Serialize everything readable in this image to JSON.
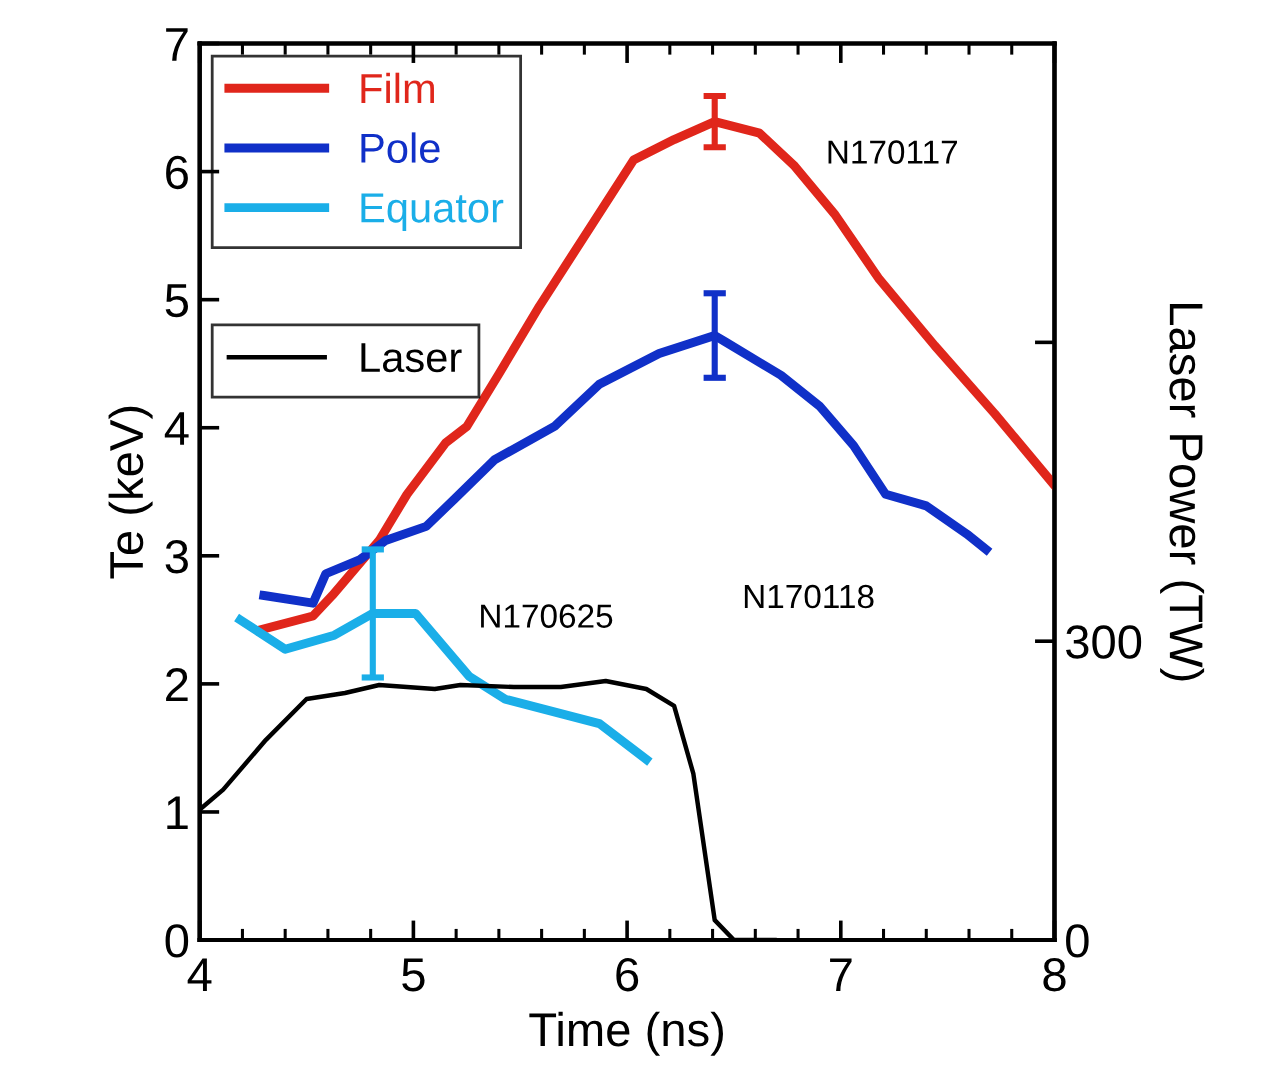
{
  "chart_data": {
    "type": "line",
    "xlabel": "Time (ns)",
    "ylabel": "Te (keV)",
    "y2label": "Laser Power (TW)",
    "xlim": [
      4,
      8
    ],
    "xticks": [
      4,
      {
        "value": 4.2,
        "label": null
      },
      {
        "value": 4.4,
        "label": null
      },
      {
        "value": 4.6,
        "label": null
      },
      {
        "value": 4.8,
        "label": null
      },
      5,
      {
        "value": 5.2,
        "label": null
      },
      {
        "value": 5.4,
        "label": null
      },
      {
        "value": 5.6,
        "label": null
      },
      {
        "value": 5.8,
        "label": null
      },
      6,
      {
        "value": 6.2,
        "label": null
      },
      {
        "value": 6.4,
        "label": null
      },
      {
        "value": 6.6,
        "label": null
      },
      {
        "value": 6.8,
        "label": null
      },
      7,
      {
        "value": 7.2,
        "label": null
      },
      {
        "value": 7.4,
        "label": null
      },
      {
        "value": 7.6,
        "label": null
      },
      {
        "value": 7.8,
        "label": null
      },
      8
    ],
    "ylim": [
      0,
      7
    ],
    "yticks": [
      0,
      1,
      2,
      3,
      4,
      5,
      6,
      7
    ],
    "y2lim": [
      0,
      900
    ],
    "y2ticks": [
      0,
      300,
      {
        "value": 600,
        "label": null
      }
    ],
    "grid": false,
    "legend": "top left",
    "marker": "none",
    "line_style": "solid",
    "series": [
      {
        "name": "Film",
        "color": "#e0261b",
        "x": [
          4.28,
          4.53,
          4.62,
          4.84,
          4.97,
          5.15,
          5.25,
          5.4,
          5.59,
          5.81,
          6.03,
          6.22,
          6.41,
          6.62,
          6.78,
          6.97,
          7.18,
          7.44,
          7.72,
          8.0
        ],
        "values": [
          2.42,
          2.53,
          2.69,
          3.12,
          3.48,
          3.88,
          4.01,
          4.42,
          4.95,
          5.52,
          6.09,
          6.25,
          6.39,
          6.3,
          6.05,
          5.67,
          5.16,
          4.64,
          4.11,
          3.55
        ],
        "errors": [
          null,
          null,
          null,
          null,
          null,
          null,
          null,
          null,
          null,
          null,
          null,
          null,
          0.2,
          null,
          null,
          null,
          null,
          null,
          null,
          null
        ]
      },
      {
        "name": "Pole",
        "color": "#1030c8",
        "x": [
          4.3,
          4.53,
          4.59,
          4.75,
          4.87,
          5.06,
          5.19,
          5.38,
          5.66,
          5.87,
          6.15,
          6.41,
          6.46,
          6.72,
          6.9,
          7.06,
          7.21,
          7.4,
          7.59,
          7.68
        ],
        "values": [
          2.69,
          2.63,
          2.86,
          2.97,
          3.12,
          3.23,
          3.44,
          3.75,
          4.01,
          4.34,
          4.58,
          4.72,
          4.67,
          4.41,
          4.17,
          3.86,
          3.48,
          3.39,
          3.17,
          3.05
        ],
        "errors": [
          null,
          null,
          null,
          null,
          null,
          null,
          null,
          null,
          null,
          null,
          null,
          0.33,
          null,
          null,
          null,
          null,
          null,
          null,
          null,
          null
        ]
      },
      {
        "name": "Equator",
        "color": "#1aaee8",
        "x": [
          4.19,
          4.4,
          4.63,
          4.81,
          5.01,
          5.26,
          5.43,
          5.87,
          6.09
        ],
        "values": [
          2.5,
          2.27,
          2.38,
          2.55,
          2.55,
          2.06,
          1.88,
          1.69,
          1.41
        ],
        "errors": [
          null,
          null,
          null,
          0.5,
          null,
          null,
          null,
          null,
          null
        ]
      },
      {
        "name": "Laser",
        "color": "#000000",
        "axis": "y2",
        "x": [
          4.0,
          4.11,
          4.31,
          4.5,
          4.68,
          4.84,
          5.1,
          5.22,
          5.47,
          5.69,
          5.9,
          6.09,
          6.22,
          6.31,
          6.41,
          6.5,
          6.69
        ],
        "values": [
          131,
          151,
          201,
          242,
          248,
          256,
          252,
          256,
          254,
          254,
          260,
          252,
          235,
          167,
          20,
          0,
          0
        ]
      }
    ],
    "annotations": [
      "N170117",
      "N170118",
      "N170625"
    ]
  }
}
